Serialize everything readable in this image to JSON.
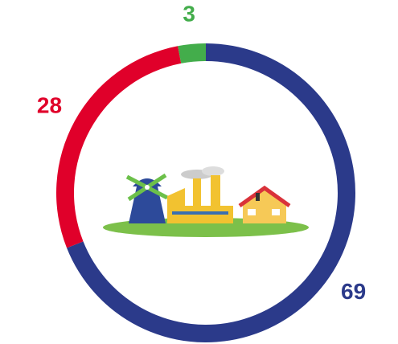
{
  "chart_data": {
    "type": "donut",
    "values": [
      69,
      28,
      3
    ],
    "colors": [
      "#2b3a8a",
      "#e0002a",
      "#43ad4b"
    ]
  }
}
